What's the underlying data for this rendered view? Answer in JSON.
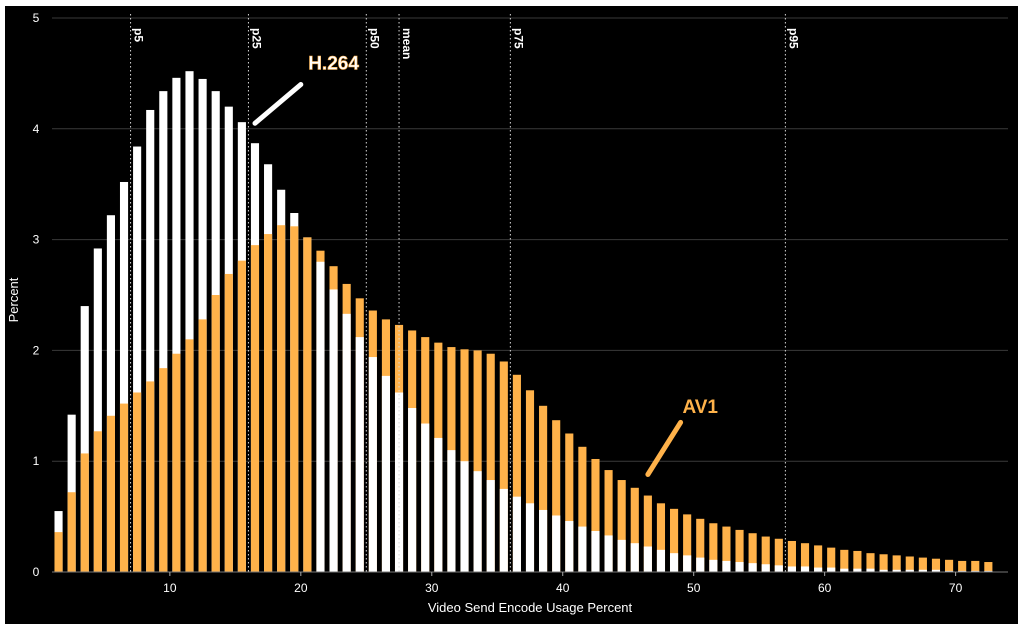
{
  "chart_data": {
    "type": "bar",
    "title": "",
    "xlabel": "Video Send Encode Usage Percent",
    "ylabel": "Percent",
    "xlim": [
      1,
      74
    ],
    "ylim": [
      0,
      5
    ],
    "xticks": [
      10,
      20,
      30,
      40,
      50,
      60,
      70
    ],
    "yticks": [
      0,
      1,
      2,
      3,
      4,
      5
    ],
    "grid": "horizontal",
    "colors": {
      "h264": "#ffffff",
      "av1": "#ffb24a",
      "background": "#000000"
    },
    "series": [
      {
        "name": "H.264",
        "x": [
          1.5,
          2.5,
          3.5,
          4.5,
          5.5,
          6.5,
          7.5,
          8.5,
          9.5,
          10.5,
          11.5,
          12.5,
          13.5,
          14.5,
          15.5,
          16.5,
          17.5,
          18.5,
          19.5,
          20.5,
          21.5,
          22.5,
          23.5,
          24.5,
          25.5,
          26.5,
          27.5,
          28.5,
          29.5,
          30.5,
          31.5,
          32.5,
          33.5,
          34.5,
          35.5,
          36.5,
          37.5,
          38.5,
          39.5,
          40.5,
          41.5,
          42.5,
          43.5,
          44.5,
          45.5,
          46.5,
          47.5,
          48.5,
          49.5,
          50.5,
          51.5,
          52.5,
          53.5,
          54.5,
          55.5,
          56.5,
          57.5,
          58.5,
          59.5,
          60.5,
          61.5,
          62.5,
          63.5,
          64.5,
          65.5,
          66.5,
          67.5,
          68.5,
          69.5,
          70.5,
          71.5,
          72.5
        ],
        "values": [
          0.55,
          1.42,
          2.4,
          2.92,
          3.22,
          3.52,
          3.84,
          4.17,
          4.34,
          4.46,
          4.52,
          4.45,
          4.34,
          4.2,
          4.06,
          3.87,
          3.68,
          3.45,
          3.24,
          3.02,
          2.8,
          2.55,
          2.33,
          2.12,
          1.94,
          1.77,
          1.62,
          1.48,
          1.34,
          1.21,
          1.1,
          1.0,
          0.91,
          0.83,
          0.75,
          0.68,
          0.62,
          0.56,
          0.51,
          0.46,
          0.41,
          0.37,
          0.33,
          0.29,
          0.26,
          0.23,
          0.2,
          0.17,
          0.15,
          0.13,
          0.11,
          0.1,
          0.09,
          0.08,
          0.07,
          0.06,
          0.05,
          0.05,
          0.04,
          0.04,
          0.03,
          0.03,
          0.03,
          0.02,
          0.02,
          0.02,
          0.02,
          0.02,
          0.01,
          0.01,
          0.01,
          0.01
        ]
      },
      {
        "name": "AV1",
        "x": [
          1.5,
          2.5,
          3.5,
          4.5,
          5.5,
          6.5,
          7.5,
          8.5,
          9.5,
          10.5,
          11.5,
          12.5,
          13.5,
          14.5,
          15.5,
          16.5,
          17.5,
          18.5,
          19.5,
          20.5,
          21.5,
          22.5,
          23.5,
          24.5,
          25.5,
          26.5,
          27.5,
          28.5,
          29.5,
          30.5,
          31.5,
          32.5,
          33.5,
          34.5,
          35.5,
          36.5,
          37.5,
          38.5,
          39.5,
          40.5,
          41.5,
          42.5,
          43.5,
          44.5,
          45.5,
          46.5,
          47.5,
          48.5,
          49.5,
          50.5,
          51.5,
          52.5,
          53.5,
          54.5,
          55.5,
          56.5,
          57.5,
          58.5,
          59.5,
          60.5,
          61.5,
          62.5,
          63.5,
          64.5,
          65.5,
          66.5,
          67.5,
          68.5,
          69.5,
          70.5,
          71.5,
          72.5
        ],
        "values": [
          0.36,
          0.72,
          1.07,
          1.27,
          1.41,
          1.52,
          1.62,
          1.72,
          1.84,
          1.97,
          2.1,
          2.28,
          2.5,
          2.69,
          2.81,
          2.95,
          3.05,
          3.13,
          3.12,
          3.02,
          2.9,
          2.76,
          2.6,
          2.47,
          2.36,
          2.28,
          2.23,
          2.18,
          2.12,
          2.07,
          2.03,
          2.01,
          2.0,
          1.97,
          1.9,
          1.78,
          1.64,
          1.5,
          1.37,
          1.25,
          1.13,
          1.02,
          0.92,
          0.83,
          0.76,
          0.69,
          0.62,
          0.57,
          0.52,
          0.48,
          0.44,
          0.41,
          0.38,
          0.35,
          0.32,
          0.3,
          0.28,
          0.26,
          0.24,
          0.22,
          0.2,
          0.19,
          0.17,
          0.16,
          0.15,
          0.14,
          0.13,
          0.12,
          0.11,
          0.1,
          0.1,
          0.09
        ]
      }
    ],
    "percentiles": [
      {
        "label": "p5",
        "x": 7
      },
      {
        "label": "p25",
        "x": 16
      },
      {
        "label": "p50",
        "x": 25
      },
      {
        "label": "mean",
        "x": 27.5
      },
      {
        "label": "p75",
        "x": 36
      },
      {
        "label": "p95",
        "x": 57
      }
    ],
    "annotations": [
      {
        "text": "H.264",
        "series": "H.264",
        "arrow_target": [
          16.5,
          4.05
        ],
        "arrow_from": [
          20,
          4.4
        ],
        "text_at": [
          22.5,
          4.6
        ]
      },
      {
        "text": "AV1",
        "series": "AV1",
        "arrow_target": [
          46.5,
          0.88
        ],
        "arrow_from": [
          49,
          1.35
        ],
        "text_at": [
          50.5,
          1.5
        ]
      }
    ]
  }
}
